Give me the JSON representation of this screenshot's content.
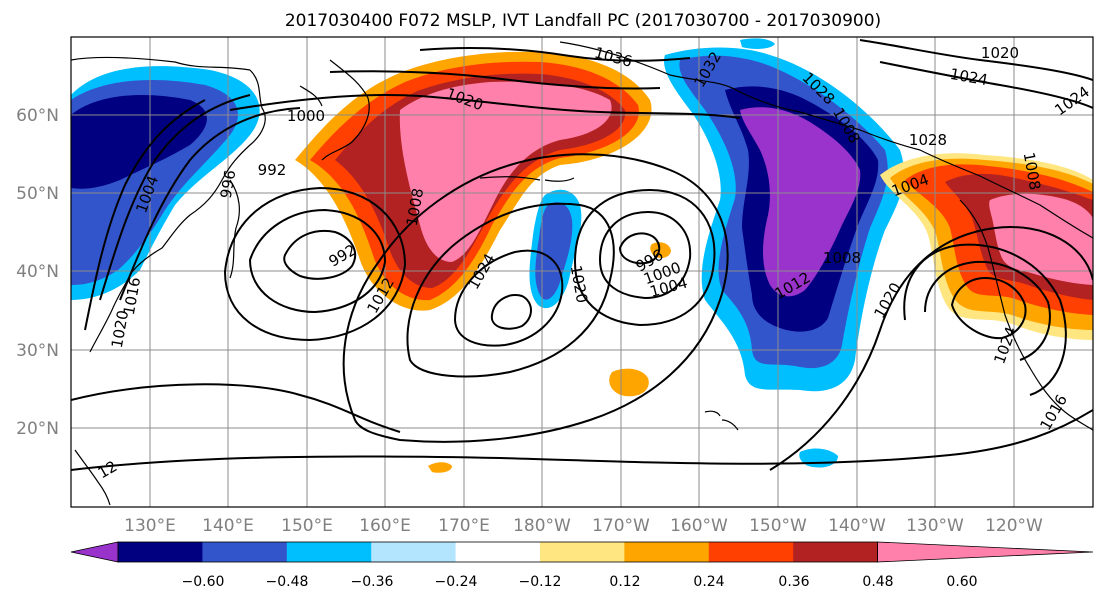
{
  "title": "2017030400 F072 MSLP, IVT Landfall PC (2017030700 - 2017030900)",
  "map": {
    "lat_ticks": [
      "60°N",
      "50°N",
      "40°N",
      "30°N",
      "20°N"
    ],
    "lon_ticks": [
      "130°E",
      "140°E",
      "150°E",
      "160°E",
      "170°E",
      "180°W",
      "170°W",
      "160°W",
      "150°W",
      "140°W",
      "130°W",
      "120°W"
    ],
    "isobar_labels": [
      "1036",
      "1032",
      "1028",
      "1020",
      "1024",
      "1024",
      "1020",
      "1000",
      "992",
      "996",
      "1004",
      "1008",
      "992",
      "1012",
      "1024",
      "1020",
      "996",
      "1000",
      "1004",
      "1008",
      "1012",
      "1020",
      "1024",
      "1016",
      "1016",
      "1020",
      "1004",
      "1008",
      "12",
      "1008",
      "1028"
    ]
  },
  "colorbar": {
    "ticks": [
      "−0.60",
      "−0.48",
      "−0.36",
      "−0.24",
      "−0.12",
      "0.12",
      "0.24",
      "0.36",
      "0.48",
      "0.60"
    ],
    "colors": [
      "#9933cc",
      "#000080",
      "#3355cc",
      "#00bfff",
      "#b3e5ff",
      "#ffffff",
      "#ffe680",
      "#ffa500",
      "#ff4000",
      "#b22222",
      "#ff80aa"
    ]
  }
}
